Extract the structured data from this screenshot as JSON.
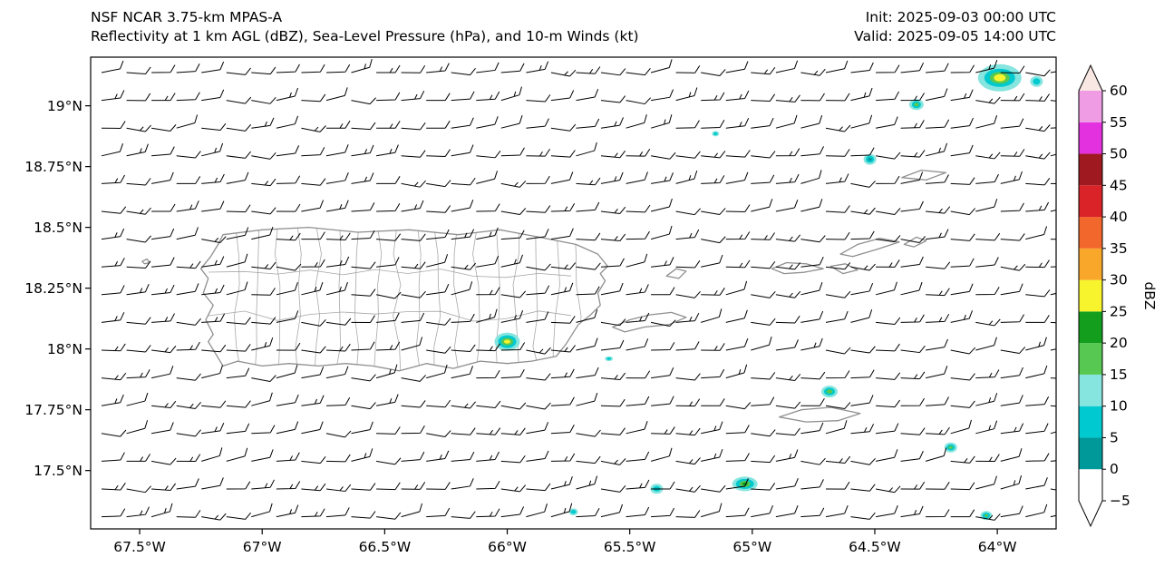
{
  "header": {
    "title_line1": "NSF NCAR 3.75-km MPAS-A",
    "title_line2": "Reflectivity at 1 km AGL (dBZ), Sea-Level Pressure (hPa), and 10-m Winds (kt)",
    "init_label": "Init: 2025-09-03 00:00 UTC",
    "valid_label": "Valid: 2025-09-05 14:00 UTC"
  },
  "chart_data": {
    "type": "heatmap",
    "title": "Reflectivity at 1 km AGL (dBZ), Sea-Level Pressure (hPa), and 10-m Winds (kt)",
    "model": "NSF NCAR 3.75-km MPAS-A",
    "init_time": "2025-09-03 00:00 UTC",
    "valid_time": "2025-09-05 14:00 UTC",
    "lon_range": [
      -67.7,
      -63.76
    ],
    "lat_range": [
      17.26,
      19.2
    ],
    "x_ticks": {
      "labels": [
        "67.5°W",
        "67°W",
        "66.5°W",
        "66°W",
        "65.5°W",
        "65°W",
        "64.5°W",
        "64°W"
      ],
      "values": [
        -67.5,
        -67,
        -66.5,
        -66,
        -65.5,
        -65,
        -64.5,
        -64
      ]
    },
    "y_ticks": {
      "labels": [
        "19°N",
        "18.75°N",
        "18.5°N",
        "18.25°N",
        "18°N",
        "17.75°N",
        "17.5°N"
      ],
      "values": [
        19,
        18.75,
        18.5,
        18.25,
        18,
        17.75,
        17.5
      ]
    },
    "colorbar": {
      "label": "dBZ",
      "tick_values": [
        -5,
        0,
        5,
        10,
        15,
        20,
        25,
        30,
        35,
        40,
        45,
        50,
        55,
        60
      ],
      "under_color": "#ffffff",
      "over_color": "#f8e7e2",
      "segments": [
        {
          "range": [
            -5,
            0
          ],
          "color": "#ffffff"
        },
        {
          "range": [
            0,
            5
          ],
          "color": "#009999"
        },
        {
          "range": [
            5,
            10
          ],
          "color": "#00c9cf"
        },
        {
          "range": [
            10,
            15
          ],
          "color": "#86e5df"
        },
        {
          "range": [
            15,
            20
          ],
          "color": "#57c851"
        },
        {
          "range": [
            20,
            25
          ],
          "color": "#149e1e"
        },
        {
          "range": [
            25,
            30
          ],
          "color": "#f7f32d"
        },
        {
          "range": [
            30,
            35
          ],
          "color": "#f9a72b"
        },
        {
          "range": [
            35,
            40
          ],
          "color": "#f2672c"
        },
        {
          "range": [
            40,
            45
          ],
          "color": "#da2328"
        },
        {
          "range": [
            45,
            50
          ],
          "color": "#9e1a20"
        },
        {
          "range": [
            50,
            55
          ],
          "color": "#e431e0"
        },
        {
          "range": [
            55,
            60
          ],
          "color": "#ef9ce5"
        }
      ]
    },
    "palette": {
      "l0": "#009999",
      "l5": "#00c9cf",
      "l10": "#86e5df",
      "g15": "#57c851",
      "g20": "#149e1e",
      "y25": "#f7f32d"
    },
    "reflectivity_cells": [
      {
        "lon": -63.99,
        "lat": 19.115,
        "max_dbz": 30,
        "layers": [
          [
            "l10",
            24,
            15
          ],
          [
            "l5",
            17,
            10
          ],
          [
            "g15",
            11,
            6.5
          ],
          [
            "y25",
            6.5,
            4
          ]
        ]
      },
      {
        "lon": -63.84,
        "lat": 19.1,
        "max_dbz": 12,
        "layers": [
          [
            "l10",
            7,
            6
          ],
          [
            "l5",
            4,
            3.5
          ]
        ]
      },
      {
        "lon": -64.33,
        "lat": 19.005,
        "max_dbz": 20,
        "layers": [
          [
            "l10",
            8,
            6
          ],
          [
            "l5",
            5,
            4
          ],
          [
            "g15",
            2.6,
            2
          ]
        ]
      },
      {
        "lon": -65.15,
        "lat": 18.885,
        "max_dbz": 12,
        "layers": [
          [
            "l10",
            4,
            3
          ],
          [
            "l5",
            2.2,
            1.6
          ]
        ]
      },
      {
        "lon": -64.52,
        "lat": 18.78,
        "max_dbz": 13,
        "layers": [
          [
            "l10",
            7,
            6
          ],
          [
            "l5",
            4.5,
            3.8
          ],
          [
            "l0",
            2,
            1.6
          ]
        ]
      },
      {
        "lon": -66.0,
        "lat": 18.03,
        "max_dbz": 28,
        "layers": [
          [
            "l10",
            14,
            10
          ],
          [
            "l5",
            10,
            7
          ],
          [
            "g15",
            6.5,
            4.2
          ],
          [
            "y25",
            3.5,
            2.2
          ]
        ]
      },
      {
        "lon": -65.585,
        "lat": 17.96,
        "max_dbz": 12,
        "layers": [
          [
            "l10",
            4.5,
            2.6
          ],
          [
            "l5",
            2.4,
            1.4
          ]
        ]
      },
      {
        "lon": -64.685,
        "lat": 17.825,
        "max_dbz": 20,
        "layers": [
          [
            "l10",
            9,
            6.5
          ],
          [
            "l5",
            6,
            4.2
          ],
          [
            "g15",
            3.4,
            2.2
          ]
        ]
      },
      {
        "lon": -64.19,
        "lat": 17.595,
        "max_dbz": 20,
        "layers": [
          [
            "l10",
            7,
            5.5
          ],
          [
            "l5",
            4.5,
            3.4
          ],
          [
            "g15",
            2.4,
            1.7
          ]
        ]
      },
      {
        "lon": -65.39,
        "lat": 17.425,
        "max_dbz": 13,
        "layers": [
          [
            "l10",
            7,
            5.5
          ],
          [
            "l5",
            4,
            3
          ]
        ]
      },
      {
        "lon": -65.03,
        "lat": 17.445,
        "max_dbz": 24,
        "layers": [
          [
            "l10",
            14,
            8
          ],
          [
            "l5",
            10,
            5.5
          ],
          [
            "g15",
            6,
            3.4
          ],
          [
            "g20",
            3.2,
            1.8
          ]
        ]
      },
      {
        "lon": -65.73,
        "lat": 17.33,
        "max_dbz": 12,
        "layers": [
          [
            "l10",
            5,
            3.8
          ],
          [
            "l5",
            3,
            2.2
          ]
        ]
      },
      {
        "lon": -64.045,
        "lat": 17.315,
        "max_dbz": 18,
        "layers": [
          [
            "l10",
            6.5,
            5
          ],
          [
            "l5",
            4.2,
            3.2
          ],
          [
            "g15",
            2,
            1.5
          ]
        ]
      }
    ],
    "wind_barbs": {
      "direction": "easterly",
      "typical_speed_kt": 10,
      "note": "regular grid of station barbs, mostly one full barb (10 kt), occasional extra half barb (15 kt)",
      "grid": {
        "cols": 39,
        "rows": 17
      }
    },
    "geography": {
      "coastlines": [
        {
          "id": "puerto-rico",
          "name": "Puerto Rico",
          "polygon": [
            [
              -67.16,
              18.47
            ],
            [
              -67.0,
              18.49
            ],
            [
              -66.81,
              18.5
            ],
            [
              -66.61,
              18.48
            ],
            [
              -66.4,
              18.49
            ],
            [
              -66.2,
              18.47
            ],
            [
              -66.03,
              18.49
            ],
            [
              -65.87,
              18.46
            ],
            [
              -65.72,
              18.43
            ],
            [
              -65.63,
              18.39
            ],
            [
              -65.59,
              18.34
            ],
            [
              -65.62,
              18.31
            ],
            [
              -65.6,
              18.28
            ],
            [
              -65.63,
              18.23
            ],
            [
              -65.62,
              18.18
            ],
            [
              -65.66,
              18.14
            ],
            [
              -65.71,
              18.1
            ],
            [
              -65.76,
              18.02
            ],
            [
              -65.8,
              17.97
            ],
            [
              -65.9,
              17.95
            ],
            [
              -66.0,
              17.94
            ],
            [
              -66.11,
              17.95
            ],
            [
              -66.22,
              17.92
            ],
            [
              -66.33,
              17.94
            ],
            [
              -66.44,
              17.91
            ],
            [
              -66.55,
              17.93
            ],
            [
              -66.66,
              17.94
            ],
            [
              -66.77,
              17.93
            ],
            [
              -66.89,
              17.94
            ],
            [
              -67.0,
              17.93
            ],
            [
              -67.1,
              17.95
            ],
            [
              -67.16,
              17.93
            ],
            [
              -67.19,
              17.98
            ],
            [
              -67.22,
              18.03
            ],
            [
              -67.2,
              18.06
            ],
            [
              -67.23,
              18.12
            ],
            [
              -67.2,
              18.18
            ],
            [
              -67.24,
              18.23
            ],
            [
              -67.22,
              18.29
            ],
            [
              -67.25,
              18.33
            ],
            [
              -67.21,
              18.38
            ],
            [
              -67.18,
              18.43
            ]
          ]
        },
        {
          "id": "vieques",
          "name": "Vieques",
          "polygon": [
            [
              -65.57,
              18.09
            ],
            [
              -65.5,
              18.12
            ],
            [
              -65.42,
              18.14
            ],
            [
              -65.33,
              18.15
            ],
            [
              -65.27,
              18.13
            ],
            [
              -65.34,
              18.1
            ],
            [
              -65.44,
              18.09
            ],
            [
              -65.52,
              18.07
            ]
          ]
        },
        {
          "id": "culebra",
          "name": "Culebra",
          "polygon": [
            [
              -65.35,
              18.3
            ],
            [
              -65.31,
              18.33
            ],
            [
              -65.27,
              18.32
            ],
            [
              -65.3,
              18.29
            ]
          ]
        },
        {
          "id": "st-thomas",
          "name": "St. Thomas",
          "polygon": [
            [
              -64.92,
              18.33
            ],
            [
              -64.86,
              18.355
            ],
            [
              -64.78,
              18.35
            ],
            [
              -64.71,
              18.33
            ],
            [
              -64.79,
              18.315
            ],
            [
              -64.87,
              18.31
            ]
          ]
        },
        {
          "id": "st-john",
          "name": "St. John",
          "polygon": [
            [
              -64.68,
              18.34
            ],
            [
              -64.62,
              18.35
            ],
            [
              -64.57,
              18.325
            ],
            [
              -64.63,
              18.31
            ]
          ]
        },
        {
          "id": "tortola",
          "name": "Tortola",
          "polygon": [
            [
              -64.64,
              18.39
            ],
            [
              -64.57,
              18.43
            ],
            [
              -64.48,
              18.455
            ],
            [
              -64.4,
              18.44
            ],
            [
              -64.49,
              18.41
            ],
            [
              -64.59,
              18.38
            ]
          ]
        },
        {
          "id": "virgin-gorda",
          "name": "Virgin Gorda",
          "polygon": [
            [
              -64.38,
              18.43
            ],
            [
              -64.33,
              18.46
            ],
            [
              -64.29,
              18.445
            ],
            [
              -64.34,
              18.42
            ]
          ]
        },
        {
          "id": "anegada",
          "name": "Anegada",
          "polygon": [
            [
              -64.39,
              18.705
            ],
            [
              -64.31,
              18.735
            ],
            [
              -64.21,
              18.725
            ],
            [
              -64.29,
              18.695
            ]
          ]
        },
        {
          "id": "st-croix",
          "name": "St. Croix",
          "polygon": [
            [
              -64.89,
              17.72
            ],
            [
              -64.8,
              17.75
            ],
            [
              -64.68,
              17.76
            ],
            [
              -64.56,
              17.735
            ],
            [
              -64.65,
              17.705
            ],
            [
              -64.78,
              17.7
            ]
          ]
        },
        {
          "id": "desecheo",
          "name": "Desecheo",
          "polygon": [
            [
              -67.49,
              18.36
            ],
            [
              -67.47,
              18.37
            ],
            [
              -67.46,
              18.355
            ],
            [
              -67.48,
              18.35
            ]
          ]
        }
      ]
    }
  }
}
